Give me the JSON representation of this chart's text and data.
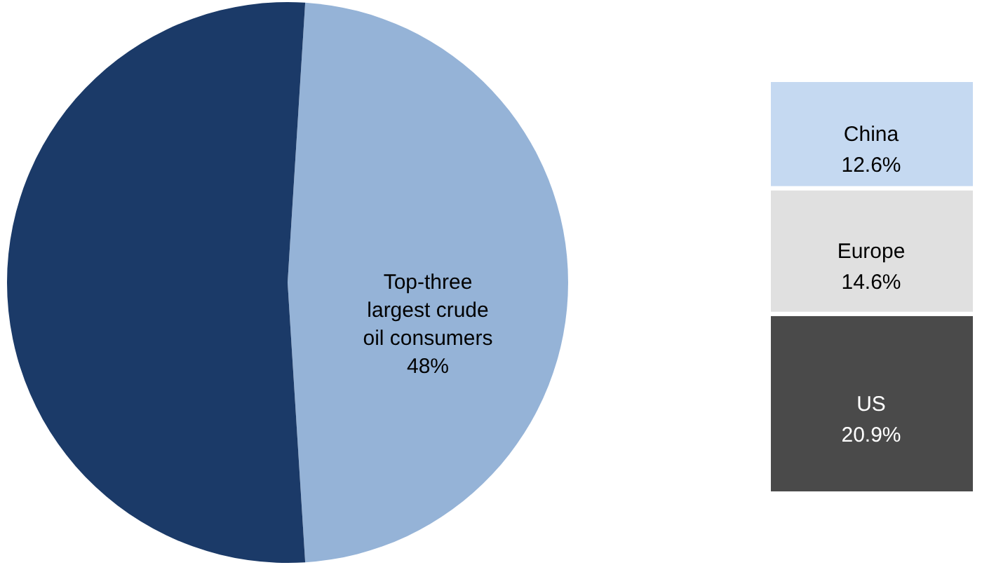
{
  "chart_data": [
    {
      "type": "pie",
      "categories": [
        "Top-three largest crude oil consumers",
        null
      ],
      "values": [
        48,
        52
      ],
      "colors": [
        "#95b3d7",
        "#1b3a68"
      ],
      "value_labels": [
        "48%",
        null
      ]
    },
    {
      "type": "bar",
      "stacked": true,
      "categories": [
        null
      ],
      "series": [
        {
          "name": "US",
          "color": "#4a4a4a",
          "values": [
            20.9
          ],
          "value_labels": [
            "20.9%"
          ]
        },
        {
          "name": "Europe",
          "color": "#e0e0e0",
          "values": [
            14.6
          ],
          "value_labels": [
            "14.6%"
          ]
        },
        {
          "name": "China",
          "color": "#c5d9f1",
          "values": [
            12.6
          ],
          "value_labels": [
            "12.6%"
          ]
        }
      ]
    }
  ]
}
